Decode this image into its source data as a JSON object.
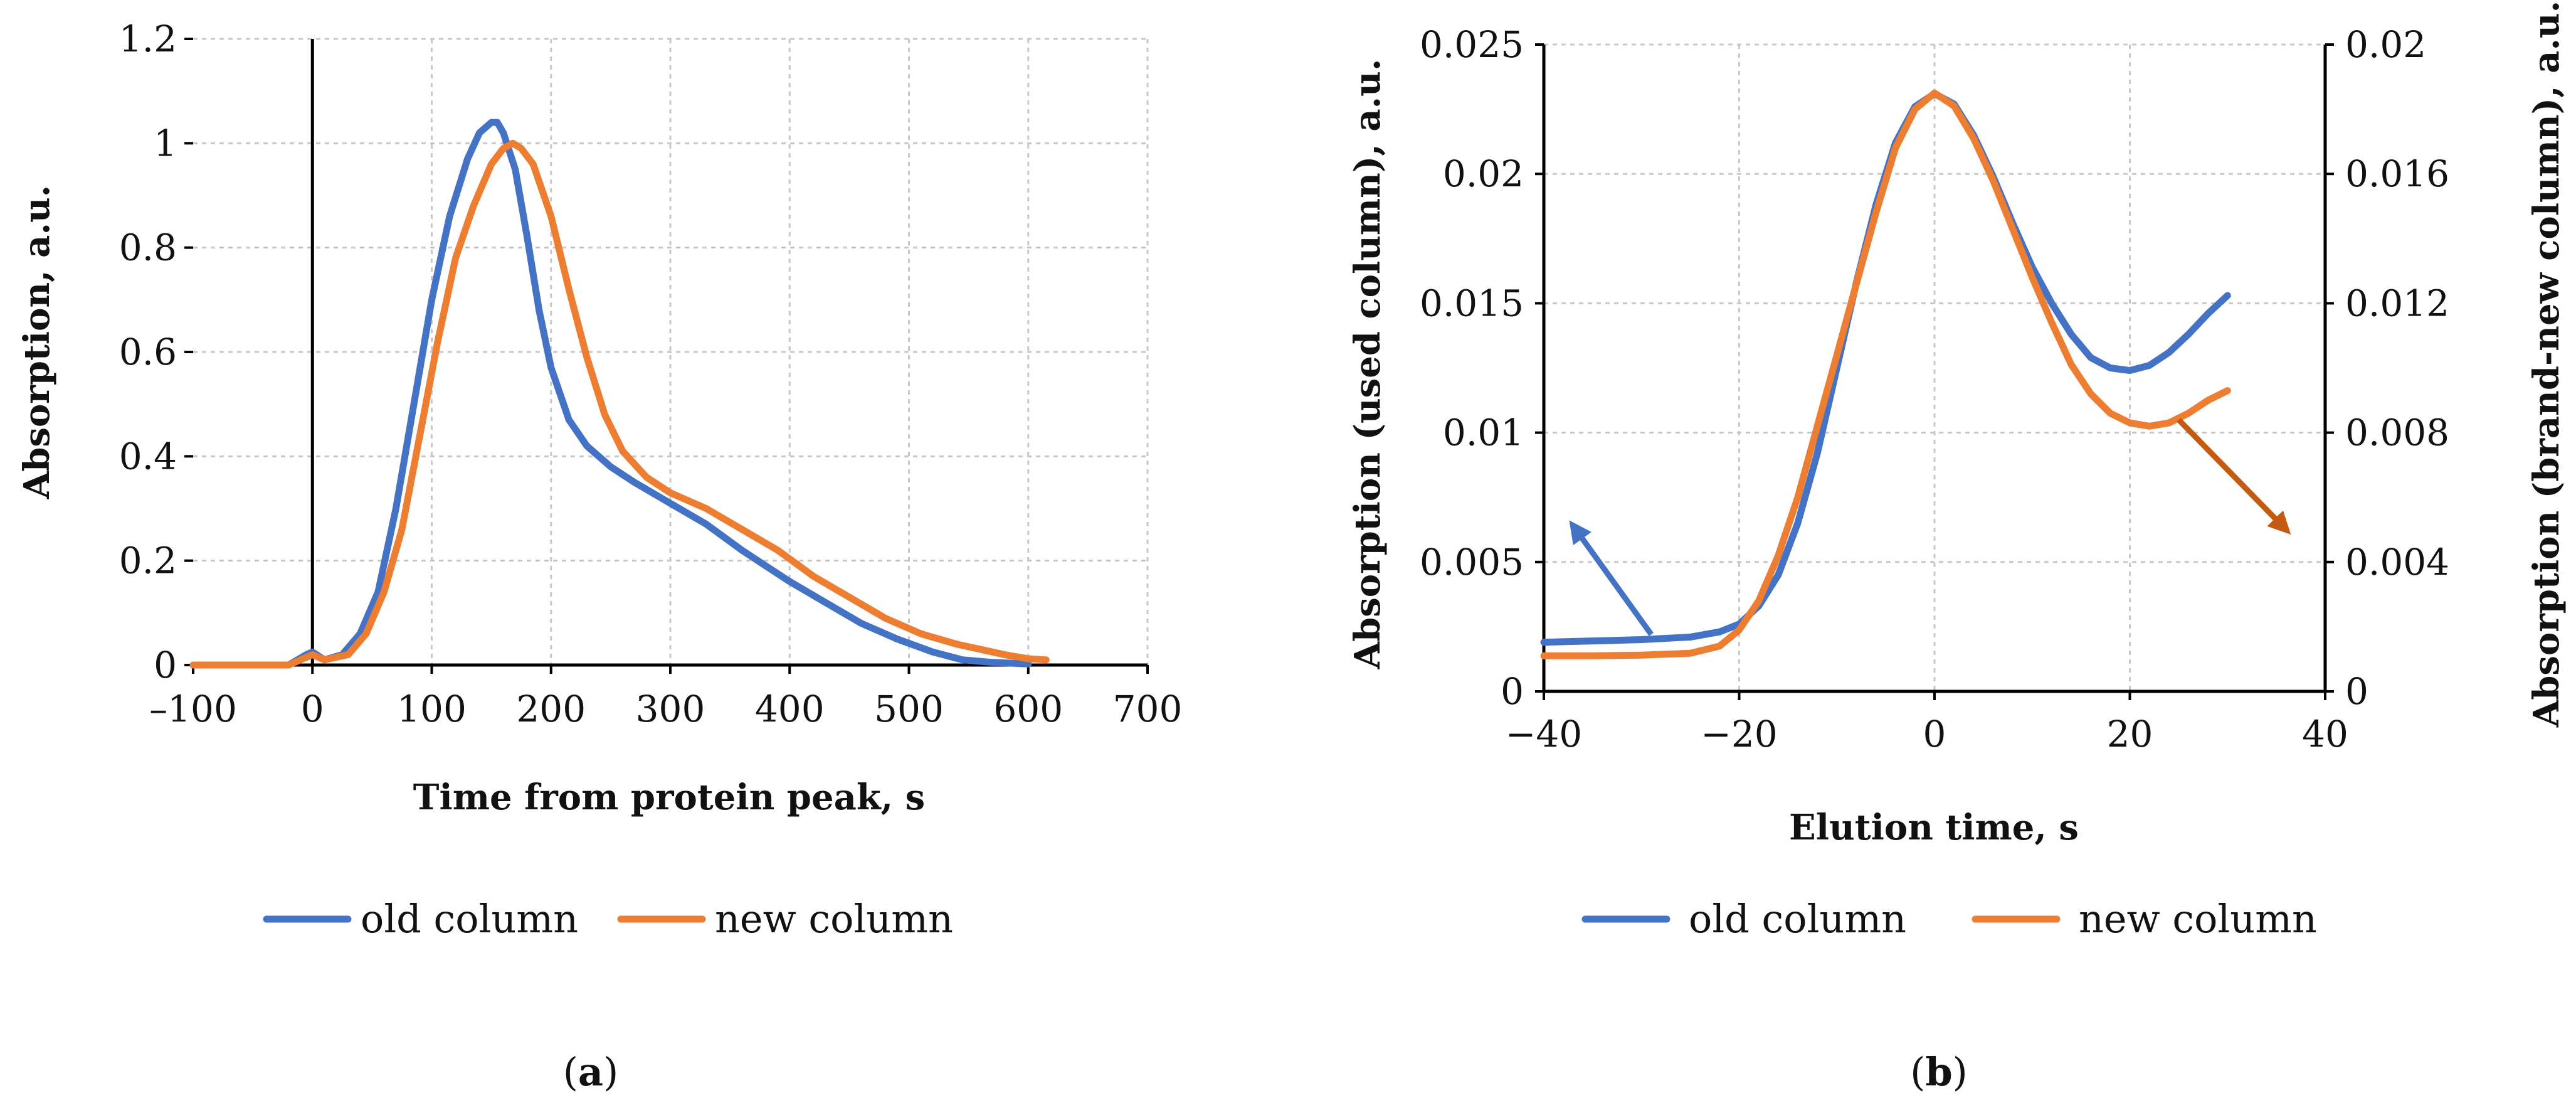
{
  "colors": {
    "old": "#4472C4",
    "new": "#ED7D31",
    "arrow_right": "#C55A11"
  },
  "chart_data": [
    {
      "panel": "a",
      "caption": {
        "open": "(",
        "letter": "a",
        "close": ")"
      },
      "type": "line",
      "title": "",
      "xlabel": "Time from protein peak, s",
      "ylabel": "Absorption, a.u.",
      "xlim": [
        -100,
        700
      ],
      "ylim": [
        0,
        1.2
      ],
      "xticks": [
        -100,
        0,
        100,
        200,
        300,
        400,
        500,
        600,
        700
      ],
      "xtick_labels": [
        "–100",
        "0",
        "100",
        "200",
        "300",
        "400",
        "500",
        "600",
        "700"
      ],
      "yticks": [
        0,
        0.2,
        0.4,
        0.6,
        0.8,
        1,
        1.2
      ],
      "ytick_labels": [
        "0",
        "0.2",
        "0.4",
        "0.6",
        "0.8",
        "1",
        "1.2"
      ],
      "grid": true,
      "legend_position": "bottom",
      "series": [
        {
          "name": "old column",
          "color_key": "old",
          "x": [
            -100,
            -20,
            -5,
            0,
            10,
            25,
            40,
            55,
            70,
            85,
            100,
            115,
            130,
            140,
            150,
            155,
            160,
            170,
            180,
            190,
            200,
            215,
            230,
            250,
            270,
            300,
            330,
            360,
            380,
            400,
            430,
            460,
            490,
            520,
            545,
            570,
            600
          ],
          "y": [
            0,
            0,
            0.02,
            0.025,
            0.01,
            0.02,
            0.06,
            0.14,
            0.3,
            0.5,
            0.7,
            0.86,
            0.97,
            1.02,
            1.04,
            1.04,
            1.02,
            0.95,
            0.82,
            0.68,
            0.57,
            0.47,
            0.42,
            0.38,
            0.35,
            0.31,
            0.27,
            0.22,
            0.19,
            0.16,
            0.12,
            0.08,
            0.05,
            0.025,
            0.01,
            0.005,
            0.002
          ]
        },
        {
          "name": "new column",
          "color_key": "new",
          "x": [
            -100,
            -20,
            0,
            10,
            30,
            45,
            60,
            75,
            90,
            105,
            120,
            135,
            150,
            160,
            168,
            175,
            185,
            200,
            215,
            230,
            245,
            260,
            280,
            300,
            330,
            360,
            390,
            420,
            450,
            480,
            510,
            540,
            560,
            580,
            600,
            615
          ],
          "y": [
            0,
            0,
            0.02,
            0.01,
            0.02,
            0.06,
            0.14,
            0.26,
            0.44,
            0.62,
            0.78,
            0.88,
            0.96,
            0.99,
            1.0,
            0.99,
            0.96,
            0.86,
            0.72,
            0.59,
            0.48,
            0.41,
            0.36,
            0.33,
            0.3,
            0.26,
            0.22,
            0.17,
            0.13,
            0.09,
            0.06,
            0.04,
            0.03,
            0.02,
            0.012,
            0.01
          ]
        }
      ]
    },
    {
      "panel": "b",
      "caption": {
        "open": "(",
        "letter": "b",
        "close": ")"
      },
      "type": "line",
      "title": "",
      "xlabel": "Elution time, s",
      "ylabel_left": "Absorption (used column), a.u.",
      "ylabel_right": "Absorption (brand-new column), a.u.",
      "xlim": [
        -40,
        40
      ],
      "ylim_left": [
        0,
        0.025
      ],
      "ylim_right": [
        0,
        0.02
      ],
      "xticks": [
        -40,
        -20,
        0,
        20,
        40
      ],
      "xtick_labels": [
        "−40",
        "−20",
        "0",
        "20",
        "40"
      ],
      "yticks_left": [
        0,
        0.005,
        0.01,
        0.015,
        0.02,
        0.025
      ],
      "ytick_labels_left": [
        "0",
        "0.005",
        "0.01",
        "0.015",
        "0.02",
        "0.025"
      ],
      "yticks_right": [
        0,
        0.004,
        0.008,
        0.012,
        0.016,
        0.02
      ],
      "ytick_labels_right": [
        "0",
        "0.004",
        "0.008",
        "0.012",
        "0.016",
        "0.02"
      ],
      "grid": true,
      "legend_position": "bottom",
      "series": [
        {
          "name": "old column",
          "color_key": "old",
          "axis": "left",
          "x": [
            -40,
            -35,
            -30,
            -25,
            -22,
            -20,
            -18,
            -16,
            -14,
            -12,
            -10,
            -8,
            -6,
            -4,
            -2,
            0,
            2,
            4,
            6,
            8,
            10,
            12,
            14,
            16,
            18,
            20,
            22,
            24,
            26,
            28,
            30
          ],
          "y": [
            0.0019,
            0.00195,
            0.002,
            0.0021,
            0.0023,
            0.0026,
            0.0033,
            0.0045,
            0.0065,
            0.0092,
            0.0125,
            0.0158,
            0.0188,
            0.0212,
            0.0226,
            0.0231,
            0.0227,
            0.0215,
            0.0199,
            0.0181,
            0.0164,
            0.015,
            0.0138,
            0.0129,
            0.0125,
            0.0124,
            0.0126,
            0.0131,
            0.0138,
            0.0146,
            0.0153
          ]
        },
        {
          "name": "new column",
          "color_key": "new",
          "axis": "right",
          "x": [
            -40,
            -35,
            -30,
            -25,
            -22,
            -20,
            -18,
            -16,
            -14,
            -12,
            -10,
            -8,
            -6,
            -4,
            -2,
            0,
            2,
            4,
            6,
            8,
            10,
            12,
            14,
            16,
            18,
            20,
            22,
            24,
            26,
            28,
            30
          ],
          "y": [
            0.0011,
            0.0011,
            0.00112,
            0.00118,
            0.0014,
            0.0019,
            0.0028,
            0.0042,
            0.006,
            0.0082,
            0.0104,
            0.0126,
            0.0148,
            0.0168,
            0.018,
            0.0185,
            0.0181,
            0.0171,
            0.0158,
            0.0143,
            0.0128,
            0.0114,
            0.0101,
            0.0092,
            0.0086,
            0.0083,
            0.0082,
            0.0083,
            0.0086,
            0.009,
            0.0093
          ]
        }
      ],
      "annotations": [
        {
          "type": "arrow",
          "meaning": "points to left y-axis (old column)",
          "color_key": "old",
          "from": [
            -29,
            0.0022
          ],
          "to": [
            -37,
            0.0064
          ],
          "axis": "left"
        },
        {
          "type": "arrow",
          "meaning": "points to right y-axis (new column)",
          "color_key": "arrow_right",
          "from": [
            25,
            0.0084
          ],
          "to": [
            36,
            0.005
          ],
          "axis": "right"
        }
      ]
    }
  ]
}
